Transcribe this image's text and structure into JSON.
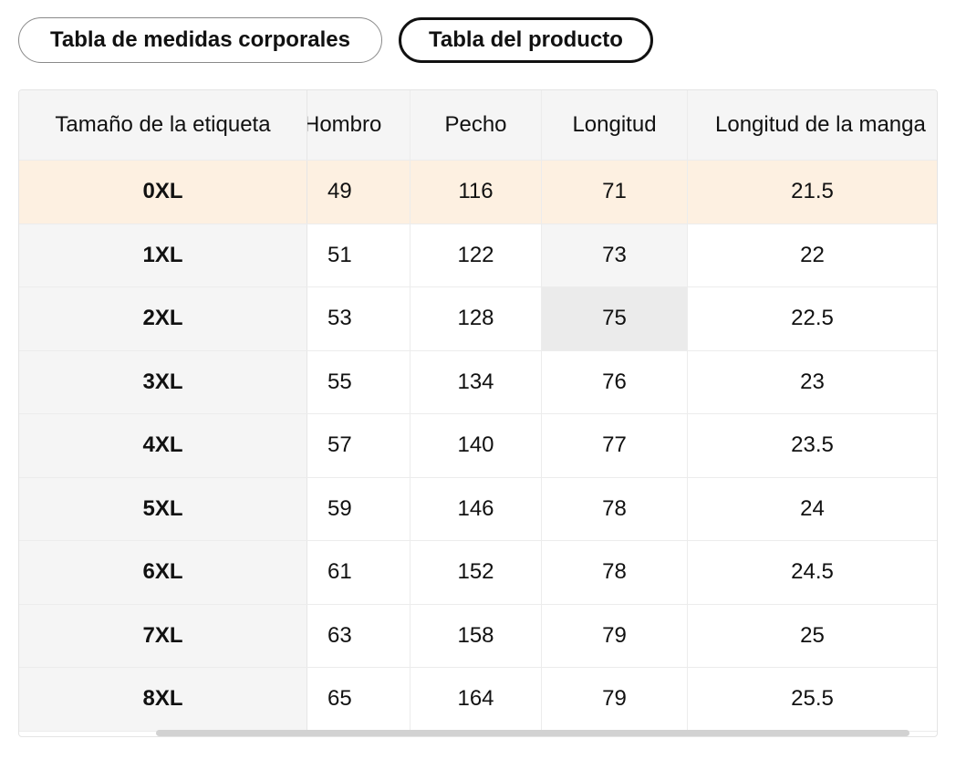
{
  "tabs": [
    {
      "label": "Tabla de medidas corporales",
      "active": false
    },
    {
      "label": "Tabla del producto",
      "active": true
    }
  ],
  "table": {
    "headers": {
      "size": "Tamaño de la etiqueta",
      "hombro": "Hombro",
      "pecho": "Pecho",
      "longitud": "Longitud",
      "manga": "Longitud de la manga"
    },
    "rows": [
      {
        "size": "0XL",
        "hombro": "49",
        "pecho": "116",
        "longitud": "71",
        "manga": "21.5"
      },
      {
        "size": "1XL",
        "hombro": "51",
        "pecho": "122",
        "longitud": "73",
        "manga": "22"
      },
      {
        "size": "2XL",
        "hombro": "53",
        "pecho": "128",
        "longitud": "75",
        "manga": "22.5"
      },
      {
        "size": "3XL",
        "hombro": "55",
        "pecho": "134",
        "longitud": "76",
        "manga": "23"
      },
      {
        "size": "4XL",
        "hombro": "57",
        "pecho": "140",
        "longitud": "77",
        "manga": "23.5"
      },
      {
        "size": "5XL",
        "hombro": "59",
        "pecho": "146",
        "longitud": "78",
        "manga": "24"
      },
      {
        "size": "6XL",
        "hombro": "61",
        "pecho": "152",
        "longitud": "78",
        "manga": "24.5"
      },
      {
        "size": "7XL",
        "hombro": "63",
        "pecho": "158",
        "longitud": "79",
        "manga": "25"
      },
      {
        "size": "8XL",
        "hombro": "65",
        "pecho": "164",
        "longitud": "79",
        "manga": "25.5"
      }
    ]
  },
  "colors": {
    "highlight_row": "#fdf0e1",
    "sticky_column": "#f5f5f5",
    "hover_cell": "#ebebeb",
    "hover_column": "#f5f5f5"
  }
}
